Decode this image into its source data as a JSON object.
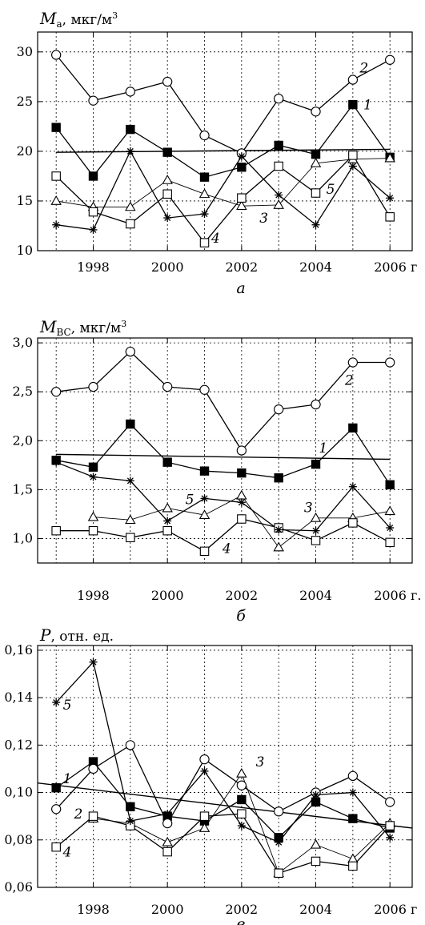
{
  "chart_data": [
    {
      "type": "line",
      "panel_label": "а",
      "ylabel_symbol": "M",
      "ylabel_sub": "a",
      "ylabel_units": ", мкг/м",
      "ylabel_sup": "3",
      "x_unit": "г",
      "xlim": [
        1996.5,
        2006.6
      ],
      "ylim": [
        10,
        32
      ],
      "xticks": [
        1998,
        2000,
        2002,
        2004,
        2006
      ],
      "xtick_labels": [
        "1998",
        "2000",
        "2002",
        "2004",
        "2006 г"
      ],
      "yticks": [
        10,
        15,
        20,
        25,
        30
      ],
      "ytick_labels": [
        "10",
        "15",
        "20",
        "25",
        "30"
      ],
      "grid": true,
      "x": [
        1997,
        1998,
        1999,
        2000,
        2001,
        2002,
        2003,
        2004,
        2005,
        2006
      ],
      "series": [
        {
          "name": "1",
          "marker": "filled-square",
          "values": [
            22.4,
            17.5,
            22.2,
            19.9,
            17.4,
            18.4,
            20.6,
            19.7,
            24.7,
            19.4
          ]
        },
        {
          "name": "2",
          "marker": "open-circle",
          "values": [
            29.7,
            25.1,
            26.0,
            27.0,
            21.6,
            19.8,
            25.3,
            24.0,
            27.2,
            29.2
          ]
        },
        {
          "name": "3",
          "marker": "open-triangle",
          "values": [
            15.0,
            14.4,
            14.4,
            17.1,
            15.7,
            14.5,
            14.6,
            18.8,
            19.2,
            19.3
          ]
        },
        {
          "name": "4",
          "marker": "open-square",
          "values": [
            17.5,
            13.9,
            12.7,
            15.7,
            10.8,
            15.3,
            18.5,
            15.8,
            19.6,
            13.4
          ]
        },
        {
          "name": "5",
          "marker": "asterisk",
          "values": [
            12.6,
            12.1,
            20.0,
            13.3,
            13.7,
            19.5,
            15.6,
            12.6,
            18.5,
            15.3
          ]
        }
      ],
      "trend": {
        "x": [
          1997,
          2006
        ],
        "values": [
          19.9,
          20.2
        ]
      },
      "series_label_positions": [
        {
          "name": "1",
          "x": 2005.4,
          "y": 24.7
        },
        {
          "name": "2",
          "x": 2005.3,
          "y": 28.4
        },
        {
          "name": "3",
          "x": 2002.6,
          "y": 13.3
        },
        {
          "name": "4",
          "x": 2001.3,
          "y": 11.3
        },
        {
          "name": "5",
          "x": 2004.4,
          "y": 16.2
        }
      ]
    },
    {
      "type": "line",
      "panel_label": "б",
      "ylabel_symbol": "M",
      "ylabel_sub": "BC",
      "ylabel_units": ", мкг/м",
      "ylabel_sup": "3",
      "x_unit": "г.",
      "xlim": [
        1996.5,
        2006.6
      ],
      "ylim": [
        0.75,
        3.05
      ],
      "xticks": [
        1998,
        2000,
        2002,
        2004,
        2006
      ],
      "xtick_labels": [
        "1998",
        "2000",
        "2002",
        "2004",
        "2006 г."
      ],
      "yticks": [
        1.0,
        1.5,
        2.0,
        2.5,
        3.0
      ],
      "ytick_labels": [
        "1,0",
        "1,5",
        "2,0",
        "2,5",
        "3,0"
      ],
      "grid": true,
      "x": [
        1997,
        1998,
        1999,
        2000,
        2001,
        2002,
        2003,
        2004,
        2005,
        2006
      ],
      "series": [
        {
          "name": "1",
          "marker": "filled-square",
          "values": [
            1.8,
            1.73,
            2.17,
            1.78,
            1.69,
            1.67,
            1.62,
            1.76,
            2.13,
            1.55
          ]
        },
        {
          "name": "2",
          "marker": "open-circle",
          "values": [
            2.5,
            2.55,
            2.91,
            2.55,
            2.52,
            1.9,
            2.32,
            2.37,
            2.8,
            2.8
          ]
        },
        {
          "name": "3",
          "marker": "open-triangle",
          "values": [
            null,
            1.22,
            1.19,
            1.31,
            1.24,
            1.44,
            0.91,
            1.21,
            1.21,
            1.28
          ]
        },
        {
          "name": "4",
          "marker": "open-square",
          "values": [
            1.08,
            1.08,
            1.01,
            1.08,
            0.87,
            1.2,
            1.11,
            0.98,
            1.16,
            0.96
          ]
        },
        {
          "name": "5",
          "marker": "asterisk",
          "values": [
            1.78,
            1.63,
            1.59,
            1.18,
            1.41,
            1.37,
            1.09,
            1.08,
            1.53,
            1.11
          ]
        }
      ],
      "trend": {
        "x": [
          1997,
          2006
        ],
        "values": [
          1.86,
          1.81
        ]
      },
      "series_label_positions": [
        {
          "name": "1",
          "x": 2004.2,
          "y": 1.93
        },
        {
          "name": "2",
          "x": 2004.9,
          "y": 2.62
        },
        {
          "name": "3",
          "x": 2003.8,
          "y": 1.32
        },
        {
          "name": "4",
          "x": 2001.6,
          "y": 0.9
        },
        {
          "name": "5",
          "x": 2000.6,
          "y": 1.4
        }
      ]
    },
    {
      "type": "line",
      "panel_label": "в",
      "ylabel_symbol": "P",
      "ylabel_sub": "",
      "ylabel_units": ", отн. ед.",
      "ylabel_sup": "",
      "x_unit": "г",
      "xlim": [
        1996.5,
        2006.6
      ],
      "ylim": [
        0.06,
        0.162
      ],
      "xticks": [
        1998,
        2000,
        2002,
        2004,
        2006
      ],
      "xtick_labels": [
        "1998",
        "2000",
        "2002",
        "2004",
        "2006 г"
      ],
      "yticks": [
        0.06,
        0.08,
        0.1,
        0.12,
        0.14,
        0.16
      ],
      "ytick_labels": [
        "0,06",
        "0,08",
        "0,10",
        "0,12",
        "0,14",
        "0,16"
      ],
      "grid": true,
      "x": [
        1997,
        1998,
        1999,
        2000,
        2001,
        2002,
        2003,
        2004,
        2005,
        2006
      ],
      "series": [
        {
          "name": "1",
          "marker": "filled-square",
          "values": [
            0.102,
            0.113,
            0.094,
            0.09,
            0.088,
            0.097,
            0.081,
            0.096,
            0.089,
            0.085
          ]
        },
        {
          "name": "2",
          "marker": "open-circle",
          "values": [
            0.093,
            0.11,
            0.12,
            0.087,
            0.114,
            0.103,
            0.092,
            0.1,
            0.107,
            0.096
          ]
        },
        {
          "name": "3",
          "marker": "open-triangle",
          "values": [
            null,
            0.089,
            0.087,
            0.079,
            0.085,
            0.108,
            0.066,
            0.078,
            0.072,
            0.087
          ]
        },
        {
          "name": "4",
          "marker": "open-square",
          "values": [
            0.077,
            0.09,
            0.086,
            0.075,
            0.09,
            0.091,
            0.066,
            0.071,
            0.069,
            0.086
          ]
        },
        {
          "name": "5",
          "marker": "asterisk",
          "values": [
            0.138,
            0.155,
            0.088,
            0.091,
            0.109,
            0.086,
            0.079,
            0.099,
            0.1,
            0.081
          ]
        }
      ],
      "trend": {
        "x": [
          1996.5,
          2006.6
        ],
        "values": [
          0.104,
          0.085
        ]
      },
      "series_label_positions": [
        {
          "name": "1",
          "x": 1997.3,
          "y": 0.106
        },
        {
          "name": "2",
          "x": 1997.6,
          "y": 0.091
        },
        {
          "name": "3",
          "x": 2002.5,
          "y": 0.113
        },
        {
          "name": "4",
          "x": 1997.3,
          "y": 0.075
        },
        {
          "name": "5",
          "x": 1997.3,
          "y": 0.137
        }
      ]
    }
  ]
}
